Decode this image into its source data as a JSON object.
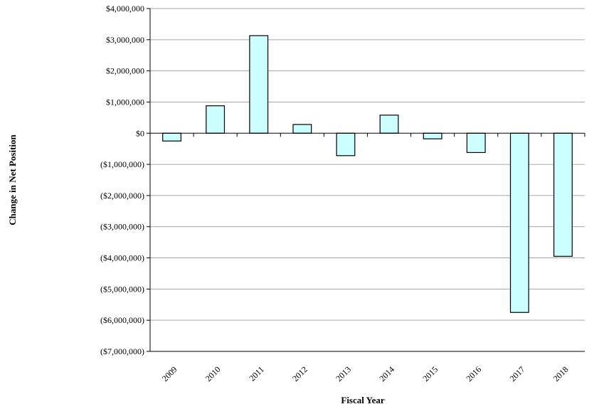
{
  "chart_data": {
    "type": "bar",
    "title": "",
    "xlabel": "Fiscal Year",
    "ylabel": "Change in Net Position",
    "categories": [
      "2009",
      "2010",
      "2011",
      "2012",
      "2013",
      "2014",
      "2015",
      "2016",
      "2017",
      "2018"
    ],
    "values": [
      -250000,
      880000,
      3130000,
      280000,
      -720000,
      580000,
      -180000,
      -620000,
      -5750000,
      -3950000
    ],
    "ylim": [
      -7000000,
      4000000
    ],
    "yticks": [
      4000000,
      3000000,
      2000000,
      1000000,
      0,
      -1000000,
      -2000000,
      -3000000,
      -4000000,
      -5000000,
      -6000000,
      -7000000
    ],
    "ytick_labels": [
      "$4,000,000",
      "$3,000,000",
      "$2,000,000",
      "$1,000,000",
      "$0",
      "($1,000,000)",
      "($2,000,000)",
      "($3,000,000)",
      "($4,000,000)",
      "($5,000,000)",
      "($6,000,000)",
      "($7,000,000)"
    ],
    "grid": true,
    "legend": "none",
    "colors": {
      "bar_fill": "#ccffff",
      "bar_stroke": "#000000",
      "grid": "#a6a6a6"
    }
  }
}
